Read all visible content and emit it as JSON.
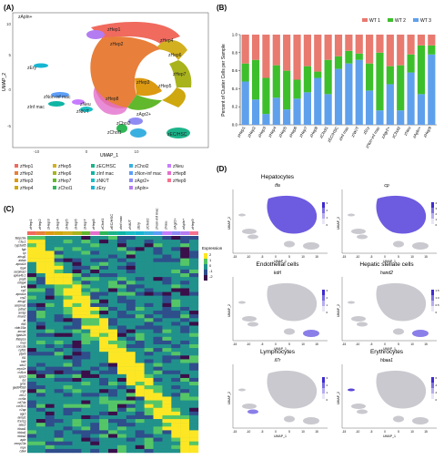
{
  "panels": {
    "A": {
      "label": "(A)",
      "xlabel": "UMAP_1",
      "ylabel": "UMAP_2",
      "x_ticks": [
        "-10",
        "0",
        "10"
      ],
      "y_ticks": [
        "10",
        "5",
        "0",
        "-5"
      ],
      "cluster_labels": [
        "zApln+",
        "zHep1",
        "zHep2",
        "zHep4",
        "zHep6",
        "zHep7",
        "zHep5",
        "zHep3",
        "zHep8",
        "zEry",
        "zNon-inf mac",
        "zNeu",
        "zInf mac",
        "zNK/T",
        "zAgr2+",
        "zChol2",
        "zChol1",
        "zEC/HSC"
      ],
      "legend": [
        {
          "name": "zHep1",
          "color": "#f06a5e"
        },
        {
          "name": "zHep5",
          "color": "#d2b01f"
        },
        {
          "name": "zEC/HSC",
          "color": "#1bb38a"
        },
        {
          "name": "zChol2",
          "color": "#3ab0e0"
        },
        {
          "name": "zNeu",
          "color": "#c77cff"
        },
        {
          "name": "zHep2",
          "color": "#e87f3a"
        },
        {
          "name": "zHep6",
          "color": "#a9b31c"
        },
        {
          "name": "zInf mac",
          "color": "#0fb5a5"
        },
        {
          "name": "zNon-inf mac",
          "color": "#5c9ef7"
        },
        {
          "name": "zHep8",
          "color": "#e46fcd"
        },
        {
          "name": "zHep3",
          "color": "#dc9a12"
        },
        {
          "name": "zHep7",
          "color": "#62b82c"
        },
        {
          "name": "zNK/T",
          "color": "#18bfc4"
        },
        {
          "name": "zAgr2+",
          "color": "#8f8bf4"
        },
        {
          "name": "zHep9",
          "color": "#f7728e"
        },
        {
          "name": "zHep4",
          "color": "#cfa70e"
        },
        {
          "name": "zChol1",
          "color": "#2eb857"
        },
        {
          "name": "zEry",
          "color": "#16b6d2"
        },
        {
          "name": "zApln+",
          "color": "#b47cf1"
        }
      ]
    },
    "B": {
      "label": "(B)",
      "ylabel": "Percent of Cluster Cells per Sample",
      "legend": [
        "WT 1",
        "WT 2",
        "WT 3"
      ]
    },
    "C": {
      "label": "(C)",
      "legend_title": "Expression",
      "legend_ticks": [
        "2",
        "1",
        "0",
        "-1",
        "-2"
      ],
      "columns": [
        "zHep1",
        "zHep2",
        "zHep3",
        "zHep4",
        "zHep5",
        "zHep6",
        "zHep7",
        "zHep8",
        "zChol1",
        "zEC/HSC",
        "zInf mac",
        "zNK/T",
        "zEry",
        "zChol2",
        "zNon-inf mac",
        "zNeu",
        "zAgr2+",
        "zApln+",
        "zHep9"
      ],
      "genes": [
        "fabp10a",
        "c3a.1",
        "cyp3a65",
        "fgb",
        "cp",
        "ahsg1",
        "aldob",
        "apoa1b",
        "rbp4",
        "serpina1l",
        "apoa4b.1",
        "pnp6",
        "mfap4",
        "krt4",
        "cp2",
        "apoa1a",
        "crp2",
        "ahsg2",
        "serpina1",
        "pdia2",
        "ambp",
        "lman2",
        "ttr",
        "ifit3",
        "cldn15la",
        "anxa4",
        "lgals2b",
        "lfabp1a",
        "mvp",
        "socs3a",
        "cpfb1",
        "ptprb",
        "fli1",
        "kdrl",
        "sdc2",
        "myo1e",
        "csf1ra",
        "spi1b",
        "lyz",
        "grn1",
        "gadd45bb",
        "srgn",
        "nkl.2",
        "ccr9a",
        "cd74a",
        "ccl35.1",
        "c1qa",
        "agr2",
        "lamp1",
        "fcer1g",
        "alas2",
        "hbaa1",
        "hbba1",
        "hbba2",
        "apln",
        "mmp13a",
        "mpx",
        "cdk4"
      ]
    },
    "D": {
      "label": "(D)",
      "cell_types": [
        {
          "title": "Hepatocytes",
          "gene": "tfa",
          "scale": [
            "3",
            "2",
            "1",
            "0"
          ]
        },
        {
          "title": "",
          "gene": "cp",
          "scale": [
            "4",
            "3",
            "2",
            "1",
            "0"
          ]
        },
        {
          "title": "Endothelial cells",
          "gene": "kdrl",
          "scale": [
            "3",
            "2",
            "1",
            "0"
          ]
        },
        {
          "title": "Hepatic stellate cells",
          "gene": "hand2",
          "scale": [
            "1.5",
            "1.0",
            "0.5",
            "0"
          ]
        },
        {
          "title": "Lymphocytes",
          "gene": "il7r",
          "scale": [
            "3",
            "2",
            "1",
            "0"
          ]
        },
        {
          "title": "Erythrocytes",
          "gene": "hbaa1",
          "scale": [
            "6",
            "4",
            "2",
            "0"
          ]
        }
      ],
      "xlabel": "UMAP_1",
      "ylabel": "UMAP_2",
      "x_ticks": [
        "-15",
        "-10",
        "-5",
        "0",
        "5",
        "10",
        "15"
      ]
    }
  },
  "chart_data": [
    {
      "type": "bar",
      "stacked": true,
      "panel": "B",
      "ylabel": "Percent of Cluster Cells per Sample",
      "ylim": [
        0,
        1.0
      ],
      "y_ticks": [
        "0.0",
        "0.2",
        "0.4",
        "0.6",
        "0.8",
        "1.0"
      ],
      "legend_position": "top-right",
      "categories": [
        "zHep1",
        "zHep2",
        "zHep3",
        "zHep4",
        "zHep5",
        "zHep6",
        "zHep7",
        "zHep8",
        "zChol1",
        "zEC/HSC",
        "zInf mac",
        "zNK/T",
        "zEry",
        "zNon-inf mac",
        "zAgr2+",
        "zChol2",
        "zNeu",
        "zApln+",
        "zHep9"
      ],
      "series": [
        {
          "name": "WT 3",
          "color": "#5fa0ec",
          "values": [
            0.48,
            0.28,
            0.12,
            0.3,
            0.17,
            0.29,
            0.36,
            0.52,
            0.34,
            0.62,
            0.68,
            0.72,
            0.38,
            0.16,
            0.45,
            0.16,
            0.58,
            0.34,
            0.78
          ]
        },
        {
          "name": "WT 2",
          "color": "#3dbf2c",
          "values": [
            0.2,
            0.44,
            0.4,
            0.36,
            0.43,
            0.21,
            0.29,
            0.07,
            0.38,
            0.14,
            0.14,
            0.07,
            0.3,
            0.64,
            0.2,
            0.5,
            0.2,
            0.54,
            0.1
          ]
        },
        {
          "name": "WT 1",
          "color": "#e87a70",
          "values": [
            0.32,
            0.28,
            0.48,
            0.34,
            0.4,
            0.5,
            0.35,
            0.41,
            0.28,
            0.24,
            0.18,
            0.21,
            0.32,
            0.2,
            0.35,
            0.34,
            0.22,
            0.12,
            0.12
          ]
        }
      ]
    }
  ]
}
